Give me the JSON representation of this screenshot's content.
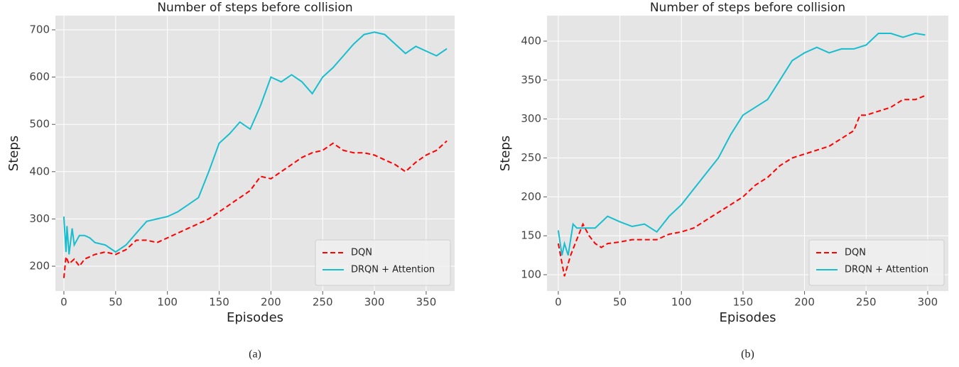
{
  "chart_data": [
    {
      "type": "line",
      "title": "Number of steps before collision",
      "xlabel": "Episodes",
      "ylabel": "Steps",
      "caption": "(a)",
      "xlim": [
        -8.2,
        377.5
      ],
      "ylim": [
        147.5,
        730
      ],
      "xticks": [
        0,
        50,
        100,
        150,
        200,
        250,
        300,
        350
      ],
      "yticks": [
        200,
        300,
        400,
        500,
        600,
        700
      ],
      "grid": true,
      "legend": "lower right",
      "series": [
        {
          "name": "DQN",
          "color": "#ff0000",
          "linestyle": "dashed",
          "x": [
            0,
            2,
            5,
            10,
            15,
            20,
            25,
            30,
            40,
            50,
            60,
            70,
            80,
            90,
            100,
            110,
            120,
            130,
            140,
            150,
            160,
            170,
            180,
            190,
            200,
            210,
            220,
            230,
            240,
            250,
            260,
            270,
            280,
            290,
            300,
            310,
            320,
            330,
            340,
            350,
            360,
            370
          ],
          "values": [
            175,
            220,
            205,
            215,
            200,
            215,
            220,
            225,
            230,
            225,
            235,
            255,
            255,
            250,
            260,
            270,
            280,
            290,
            300,
            315,
            330,
            345,
            360,
            390,
            385,
            400,
            415,
            430,
            440,
            445,
            460,
            445,
            440,
            440,
            435,
            425,
            415,
            400,
            420,
            435,
            445,
            465
          ]
        },
        {
          "name": "DRQN + Attention",
          "color": "#17becf",
          "linestyle": "solid",
          "x": [
            0,
            2,
            3,
            5,
            8,
            10,
            15,
            20,
            25,
            30,
            40,
            50,
            60,
            70,
            80,
            90,
            100,
            110,
            120,
            130,
            140,
            150,
            160,
            170,
            180,
            190,
            200,
            210,
            220,
            230,
            240,
            250,
            260,
            270,
            280,
            290,
            300,
            310,
            320,
            330,
            340,
            350,
            360,
            370
          ],
          "values": [
            305,
            230,
            285,
            225,
            280,
            245,
            265,
            265,
            260,
            250,
            245,
            230,
            245,
            270,
            295,
            300,
            305,
            315,
            330,
            345,
            400,
            460,
            480,
            505,
            490,
            540,
            600,
            590,
            605,
            590,
            565,
            600,
            620,
            645,
            670,
            690,
            695,
            690,
            670,
            650,
            665,
            655,
            645,
            660
          ]
        }
      ]
    },
    {
      "type": "line",
      "title": "Number of steps before collision",
      "xlabel": "Episodes",
      "ylabel": "Steps",
      "caption": "(b)",
      "xlim": [
        -9.2,
        316.8
      ],
      "ylim": [
        79,
        432.8
      ],
      "xticks": [
        0,
        50,
        100,
        150,
        200,
        250,
        300
      ],
      "yticks": [
        100,
        150,
        200,
        250,
        300,
        350,
        400
      ],
      "grid": true,
      "legend": "lower right",
      "series": [
        {
          "name": "DQN",
          "color": "#ff0000",
          "linestyle": "dashed",
          "x": [
            0,
            5,
            10,
            15,
            20,
            25,
            30,
            35,
            40,
            50,
            60,
            70,
            80,
            90,
            100,
            110,
            120,
            130,
            140,
            150,
            160,
            170,
            180,
            190,
            200,
            210,
            220,
            230,
            240,
            245,
            250,
            260,
            270,
            280,
            290,
            298
          ],
          "values": [
            140,
            98,
            125,
            145,
            165,
            150,
            140,
            135,
            140,
            142,
            145,
            145,
            145,
            152,
            155,
            160,
            170,
            180,
            190,
            200,
            215,
            225,
            240,
            250,
            255,
            260,
            265,
            275,
            285,
            305,
            305,
            310,
            315,
            325,
            325,
            330
          ]
        },
        {
          "name": "DRQN + Attention",
          "color": "#17becf",
          "linestyle": "solid",
          "x": [
            0,
            3,
            5,
            8,
            12,
            15,
            20,
            30,
            40,
            50,
            60,
            70,
            80,
            90,
            100,
            110,
            120,
            130,
            140,
            150,
            160,
            170,
            180,
            190,
            200,
            210,
            220,
            230,
            240,
            250,
            260,
            270,
            280,
            290,
            298
          ],
          "values": [
            157,
            125,
            140,
            125,
            165,
            160,
            160,
            160,
            175,
            168,
            162,
            165,
            155,
            175,
            190,
            210,
            230,
            250,
            280,
            305,
            315,
            325,
            350,
            375,
            385,
            392,
            385,
            390,
            390,
            395,
            410,
            410,
            405,
            410,
            408
          ]
        }
      ]
    }
  ]
}
